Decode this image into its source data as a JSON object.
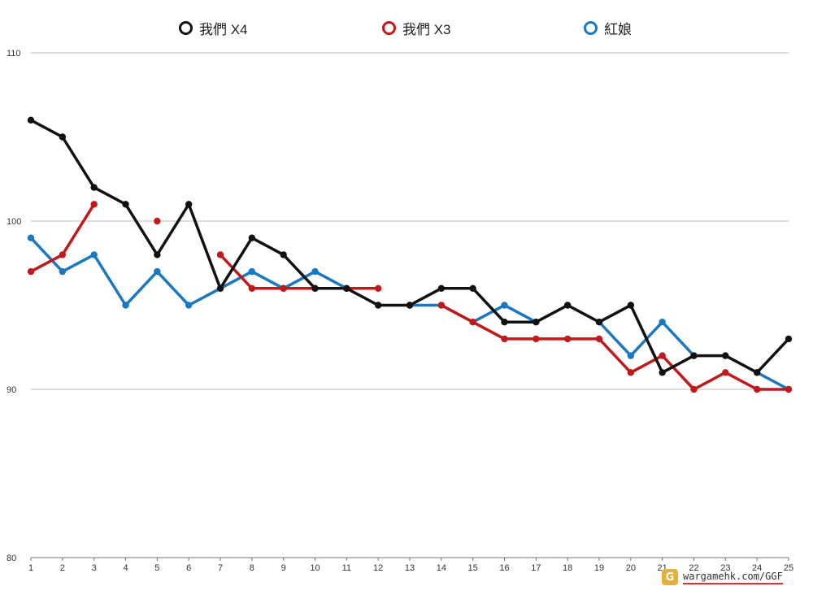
{
  "chart_data": {
    "type": "line",
    "title": "",
    "xlabel": "",
    "ylabel": "",
    "x": [
      1,
      2,
      3,
      4,
      5,
      6,
      7,
      8,
      9,
      10,
      11,
      12,
      13,
      14,
      15,
      16,
      17,
      18,
      19,
      20,
      21,
      22,
      23,
      24,
      25
    ],
    "ylim": [
      80,
      110
    ],
    "yticks": [
      80,
      90,
      100,
      110
    ],
    "grid": true,
    "legend_position": "top",
    "series": [
      {
        "name": "我們 X4",
        "color": "#111111",
        "values": [
          106,
          105,
          102,
          101,
          98,
          101,
          96,
          99,
          98,
          96,
          96,
          95,
          95,
          96,
          96,
          94,
          94,
          95,
          94,
          95,
          91,
          92,
          92,
          91,
          93
        ]
      },
      {
        "name": "我們 X3",
        "color": "#c0191b",
        "values": [
          97,
          98,
          101,
          null,
          100,
          null,
          98,
          96,
          96,
          96,
          96,
          96,
          null,
          95,
          94,
          93,
          93,
          93,
          93,
          91,
          92,
          90,
          91,
          90,
          90
        ]
      },
      {
        "name": "紅娘",
        "color": "#1a78c2",
        "values": [
          99,
          97,
          98,
          95,
          97,
          95,
          96,
          97,
          96,
          97,
          96,
          null,
          95,
          95,
          94,
          95,
          94,
          null,
          94,
          92,
          94,
          92,
          null,
          91,
          90
        ]
      }
    ]
  },
  "watermark": {
    "logo": "G",
    "text": "wargamehk.com/GGF"
  }
}
